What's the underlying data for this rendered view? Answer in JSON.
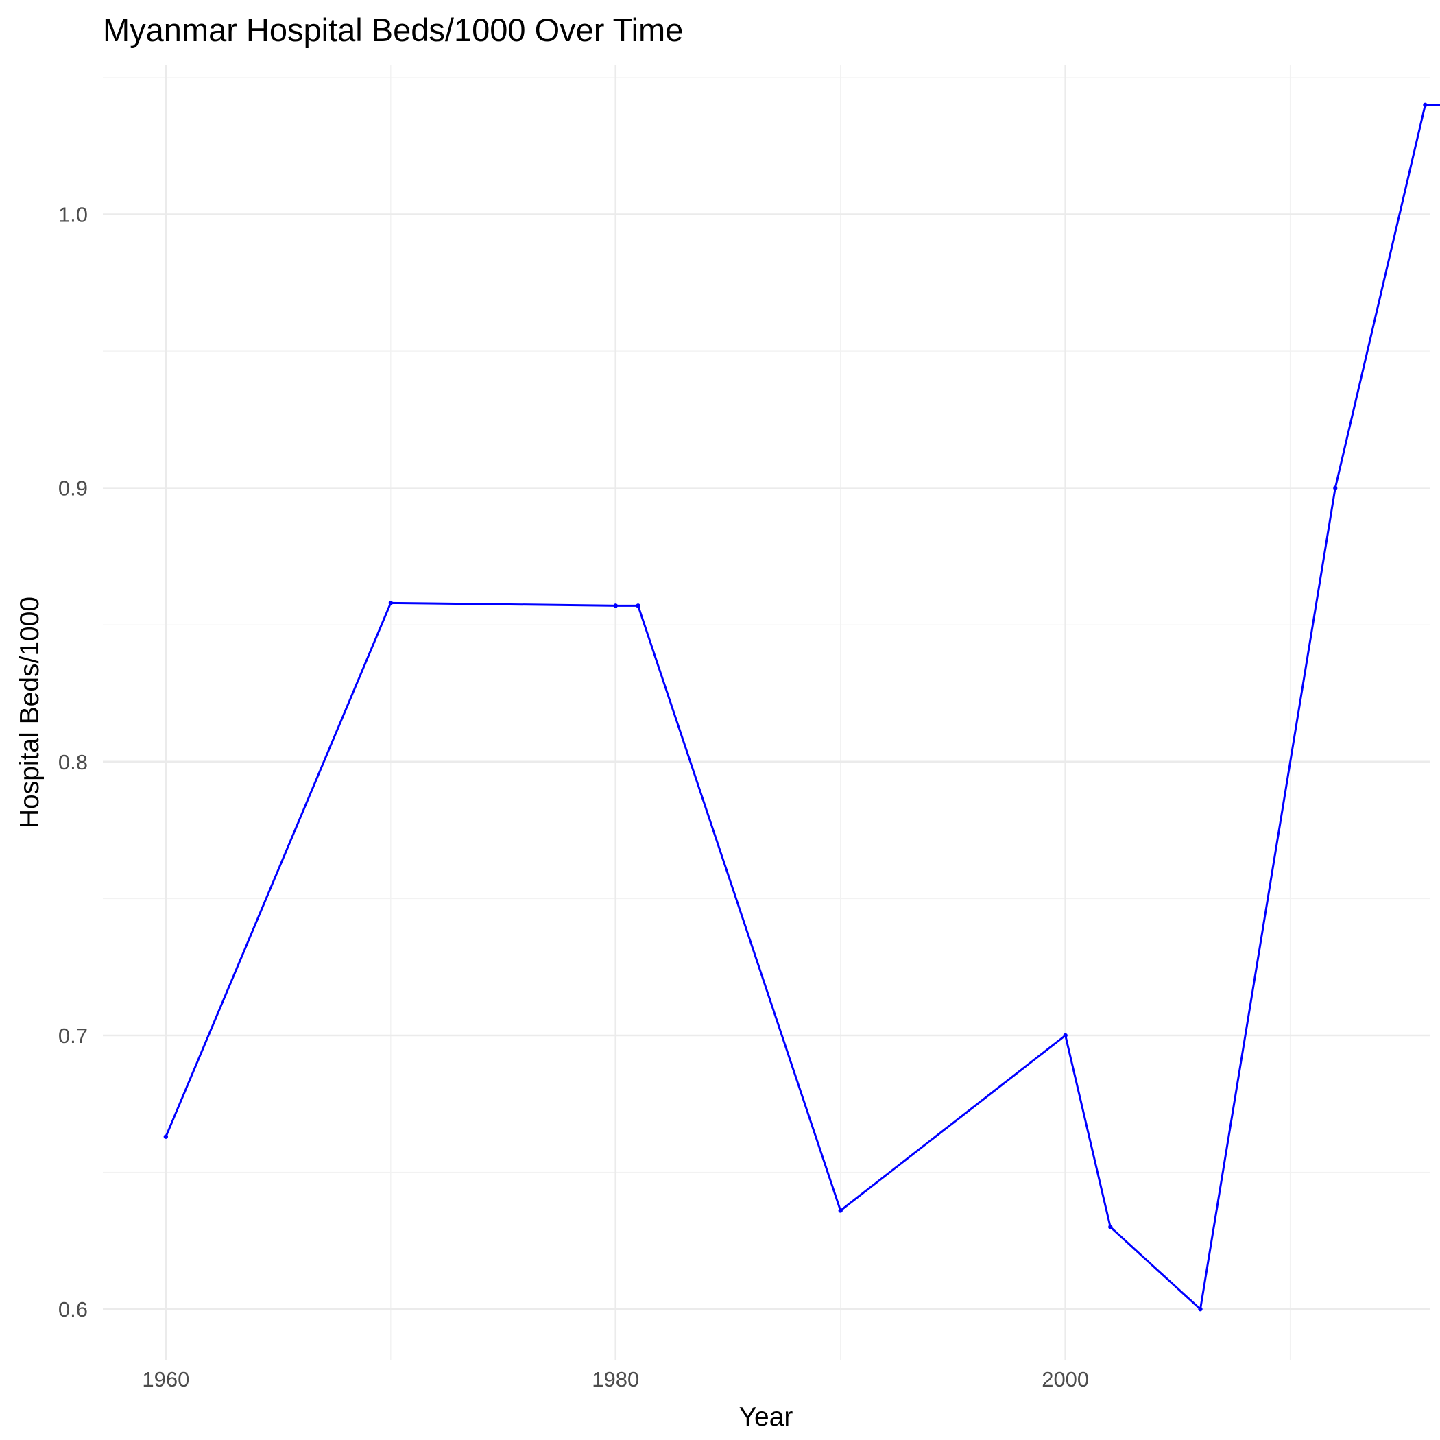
{
  "chart_data": {
    "type": "line",
    "title": "Myanmar Hospital Beds/1000 Over Time",
    "xlabel": "Year",
    "ylabel": "Hospital Beds/1000",
    "xlim": [
      1957.2,
      2016.2
    ],
    "ylim": [
      0.5815,
      1.0545
    ],
    "x_ticks": [
      1960,
      1980,
      2000
    ],
    "x_minor_ticks": [
      1970,
      1990,
      2010
    ],
    "y_ticks": [
      0.6,
      0.7,
      0.8,
      0.9,
      1.0
    ],
    "y_minor_ticks": [
      0.65,
      0.75,
      0.85,
      0.95,
      1.05
    ],
    "grid": true,
    "line_color": "#0000ff",
    "series": [
      {
        "x": [
          1960,
          1970,
          1980,
          1981,
          1990,
          2000,
          2002,
          2006,
          2012,
          2016,
          2017
        ],
        "values": [
          0.663,
          0.858,
          0.857,
          0.857,
          0.636,
          0.7,
          0.63,
          0.6,
          0.9,
          1.04,
          1.04
        ]
      }
    ]
  }
}
